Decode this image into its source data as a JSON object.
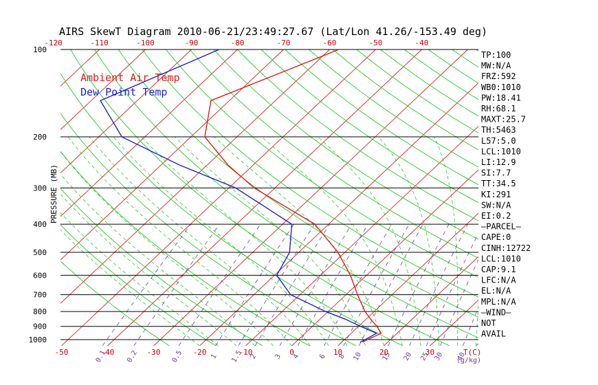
{
  "chart_data": {
    "type": "line",
    "title": "AIRS SkewT Diagram 2010-06-21/23:49:27.67 (Lat/Lon 41.26/-153.49 deg)",
    "ylabel": "PRESSURE (MB)",
    "y_scale": "log",
    "ylim": [
      1050,
      100
    ],
    "xlim_bottom": [
      -50,
      40
    ],
    "pressure_ticks": [
      "100",
      "200",
      "300",
      "400",
      "500",
      "600",
      "700",
      "800",
      "900",
      "1000"
    ],
    "temp_ticks_top": [
      "-120",
      "-110",
      "-100",
      "-90",
      "-80",
      "-70",
      "-60",
      "-50",
      "-40"
    ],
    "temp_ticks_bottom": [
      "-50",
      "-40",
      "-30",
      "-20",
      "-10",
      "0",
      "10",
      "20",
      "30"
    ],
    "temp_axis_label": "T(C)",
    "mixing_ratio_labels": [
      "0.1",
      "0.2",
      "0.5",
      "1",
      "1.5",
      "2",
      "3",
      "4",
      "6",
      "8",
      "10",
      "15",
      "20",
      "25",
      "30",
      "40"
    ],
    "mixing_ratio_unit": "(g/kg)",
    "legend": [
      {
        "name": "Ambient Air Temp",
        "color": "#e41a1c"
      },
      {
        "name": "Dew Point Temp",
        "color": "#1f1fd6"
      }
    ],
    "colors": {
      "isotherm": "#e41a1c",
      "dry_adiabat": "#22cc22",
      "moist_adiabat": "#22cc22",
      "mixing_ratio": "#6a3fa0",
      "isobar": "#000000",
      "tick_labels": "#cc0000",
      "mixing_labels": "#6a3fa0"
    },
    "series": [
      {
        "name": "Ambient Air Temp",
        "points": [
          [
            100,
            -58.0
          ],
          [
            150,
            -74.0
          ],
          [
            200,
            -67.0
          ],
          [
            250,
            -55.5
          ],
          [
            300,
            -44.5
          ],
          [
            400,
            -23.0
          ],
          [
            500,
            -11.5
          ],
          [
            600,
            -3.5
          ],
          [
            700,
            2.5
          ],
          [
            800,
            8.0
          ],
          [
            850,
            11.0
          ],
          [
            900,
            14.0
          ],
          [
            950,
            16.5
          ],
          [
            1000,
            15.0
          ],
          [
            1020,
            14.5
          ]
        ]
      },
      {
        "name": "Dew Point Temp",
        "points": [
          [
            100,
            -84.0
          ],
          [
            150,
            -98.0
          ],
          [
            200,
            -85.0
          ],
          [
            250,
            -66.0
          ],
          [
            300,
            -48.5
          ],
          [
            400,
            -28.0
          ],
          [
            500,
            -22.0
          ],
          [
            600,
            -19.5
          ],
          [
            700,
            -12.0
          ],
          [
            800,
            -0.5
          ],
          [
            850,
            5.5
          ],
          [
            900,
            10.5
          ],
          [
            950,
            15.5
          ],
          [
            1000,
            14.5
          ],
          [
            1020,
            14.0
          ]
        ]
      }
    ],
    "indices": [
      "TP:100",
      "MW:N/A",
      "FRZ:592",
      "WB0:1010",
      "PW:18.41",
      "RH:68.1",
      "MAXT:25.7",
      "TH:5463",
      "L57:5.0",
      "LCL:1010",
      "LI:12.9",
      "SI:7.7",
      "TT:34.5",
      "KI:291",
      "SW:N/A",
      "EI:0.2",
      "–PARCEL–",
      "CAPE:0",
      "CINH:12722",
      "LCL:1010",
      "CAP:9.1",
      "LFC:N/A",
      "EL:N/A",
      "MPL:N/A",
      "–WIND–",
      "NOT",
      "AVAIL"
    ]
  }
}
